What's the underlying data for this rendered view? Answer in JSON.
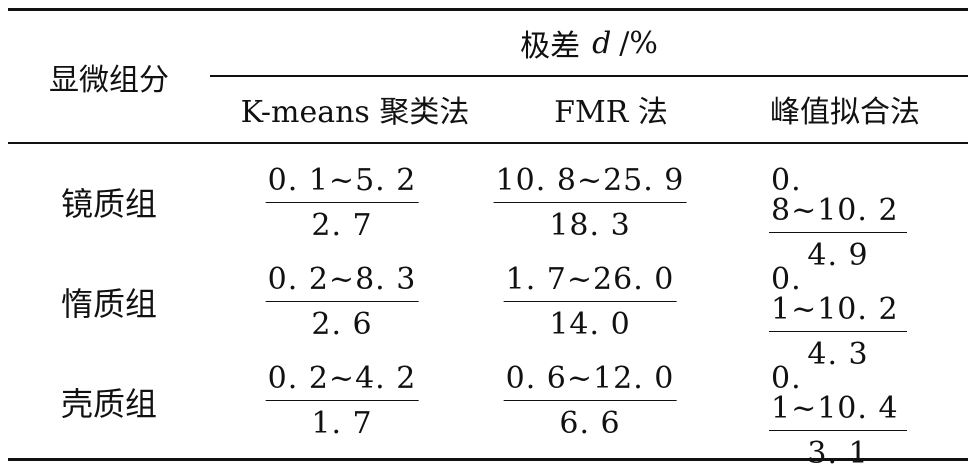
{
  "table": {
    "header": {
      "row_label": "显微组分",
      "group_prefix": "极差",
      "group_var": "d",
      "group_unit": "/%",
      "columns": [
        "K-means 聚类法",
        "FMR 法",
        "峰值拟合法"
      ]
    },
    "rows": [
      {
        "label": "镜质组",
        "cells": [
          {
            "range": "0. 1~5. 2",
            "mean": "2. 7"
          },
          {
            "range": "10. 8~25. 9",
            "mean": "18. 3"
          },
          {
            "range": "0. 8~10. 2",
            "mean": "4. 9"
          }
        ]
      },
      {
        "label": "惰质组",
        "cells": [
          {
            "range": "0. 2~8. 3",
            "mean": "2. 6"
          },
          {
            "range": "1. 7~26. 0",
            "mean": "14. 0"
          },
          {
            "range": "0. 1~10. 2",
            "mean": "4. 3"
          }
        ]
      },
      {
        "label": "壳质组",
        "cells": [
          {
            "range": "0. 2~4. 2",
            "mean": "1. 7"
          },
          {
            "range": "0. 6~12. 0",
            "mean": "6. 6"
          },
          {
            "range": "0. 1~10. 4",
            "mean": "3. 1"
          }
        ]
      }
    ]
  }
}
